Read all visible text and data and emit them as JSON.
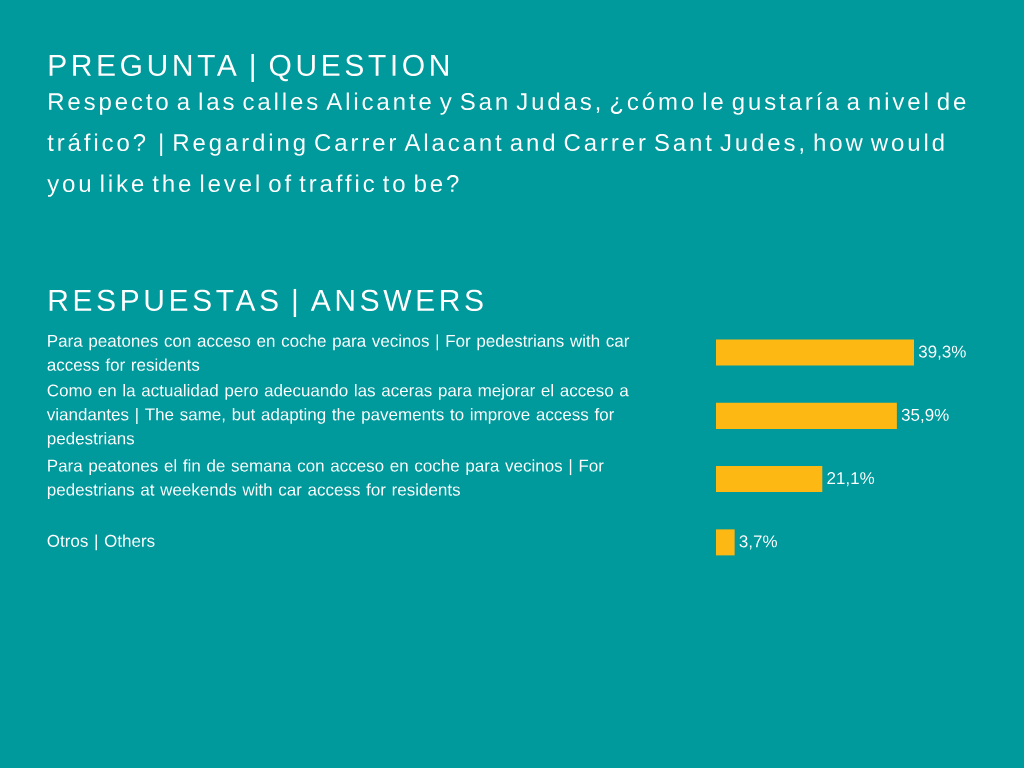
{
  "chart_data": {
    "type": "bar",
    "orientation": "horizontal",
    "title": "PREGUNTA | QUESTION",
    "subtitle": "Respecto a las calles Alicante y San Judas, ¿cómo le gustaría a nivel de tráfico? | Regarding Carrer Alacant and Carrer Sant Judes, how would you like the level of traffic to be?",
    "annotations": [
      "RESPUESTAS | ANSWERS"
    ],
    "categories": [
      "Para peatones con acceso en coche para vecinos | For pedestrians with car access for residents",
      "Como en la actualidad pero adecuando las aceras para mejorar el acceso a viandantes | The same, but adapting the pavements to improve access for pedestrians",
      "Para peatones el fin de semana con acceso en coche para vecinos | For pedestrians at weekends with car access for residents",
      "Otros | Others"
    ],
    "values": [
      39.3,
      35.9,
      21.1,
      3.7
    ],
    "value_labels": [
      "39,3%",
      "35,9%",
      "21,1%",
      "3,7%"
    ],
    "color": "#fdb813",
    "tick_labels": "y"
  }
}
